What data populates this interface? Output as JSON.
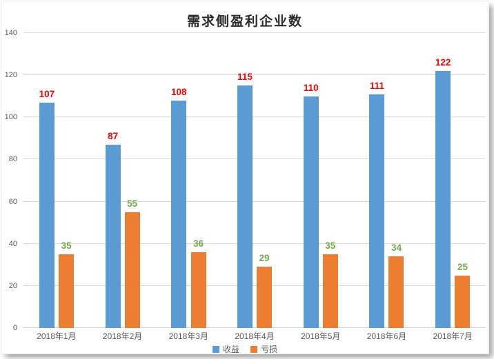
{
  "chart_data": {
    "type": "bar",
    "title": "需求侧盈利企业数",
    "categories": [
      "2018年1月",
      "2018年2月",
      "2018年3月",
      "2018年4月",
      "2018年5月",
      "2018年6月",
      "2018年7月"
    ],
    "series": [
      {
        "name": "收益",
        "color": "#5B9BD5",
        "label_color": "#FF0000",
        "values": [
          107,
          87,
          108,
          115,
          110,
          111,
          122
        ]
      },
      {
        "name": "亏损",
        "color": "#ED7D31",
        "label_color": "#70AD47",
        "values": [
          35,
          55,
          36,
          29,
          35,
          34,
          25
        ]
      }
    ],
    "xlabel": "",
    "ylabel": "",
    "ylim": [
      0,
      140
    ],
    "ytick_step": 20,
    "grid": true,
    "legend_position": "bottom"
  }
}
